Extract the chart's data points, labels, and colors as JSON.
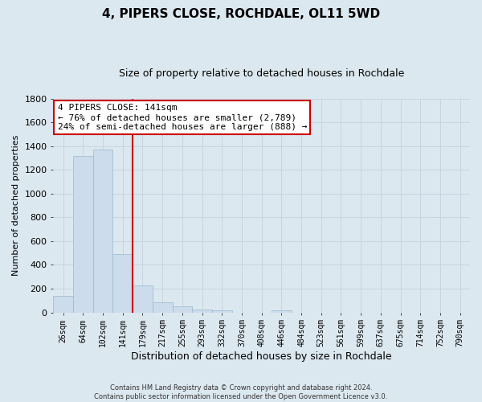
{
  "title": "4, PIPERS CLOSE, ROCHDALE, OL11 5WD",
  "subtitle": "Size of property relative to detached houses in Rochdale",
  "xlabel": "Distribution of detached houses by size in Rochdale",
  "ylabel": "Number of detached properties",
  "bar_labels": [
    "26sqm",
    "64sqm",
    "102sqm",
    "141sqm",
    "179sqm",
    "217sqm",
    "255sqm",
    "293sqm",
    "332sqm",
    "370sqm",
    "408sqm",
    "446sqm",
    "484sqm",
    "523sqm",
    "561sqm",
    "599sqm",
    "637sqm",
    "675sqm",
    "714sqm",
    "752sqm",
    "790sqm"
  ],
  "bar_heights": [
    140,
    1315,
    1370,
    490,
    230,
    85,
    50,
    25,
    15,
    0,
    0,
    15,
    0,
    0,
    0,
    0,
    0,
    0,
    0,
    0,
    0
  ],
  "bar_color": "#ccdcec",
  "bar_edge_color": "#9ab8cc",
  "vline_index": 3,
  "vline_color": "#cc0000",
  "ylim": [
    0,
    1800
  ],
  "yticks": [
    0,
    200,
    400,
    600,
    800,
    1000,
    1200,
    1400,
    1600,
    1800
  ],
  "annotation_title": "4 PIPERS CLOSE: 141sqm",
  "annotation_line1": "← 76% of detached houses are smaller (2,789)",
  "annotation_line2": "24% of semi-detached houses are larger (888) →",
  "annotation_box_color": "#ffffff",
  "annotation_box_edge": "#cc0000",
  "footer_line1": "Contains HM Land Registry data © Crown copyright and database right 2024.",
  "footer_line2": "Contains public sector information licensed under the Open Government Licence v3.0.",
  "grid_color": "#c8d4e0",
  "background_color": "#dce8f0",
  "title_fontsize": 11,
  "subtitle_fontsize": 9,
  "ylabel_fontsize": 8,
  "xlabel_fontsize": 9
}
